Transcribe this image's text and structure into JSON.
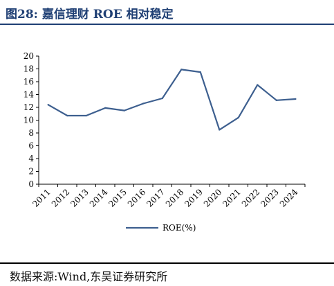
{
  "header": {
    "title": "图28:  嘉信理财 ROE 相对稳定"
  },
  "footer": {
    "source": "数据来源:Wind,东吴证券研究所"
  },
  "colors": {
    "line": "#3d5f8f",
    "title": "#1f3f74"
  },
  "chart_data": {
    "type": "line",
    "title": "",
    "xlabel": "",
    "ylabel": "",
    "ylim": [
      0,
      20
    ],
    "yticks": [
      0,
      2,
      4,
      6,
      8,
      10,
      12,
      14,
      16,
      18,
      20
    ],
    "x": [
      "2011",
      "2012",
      "2013",
      "2014",
      "2015",
      "2016",
      "2017",
      "2018",
      "2019",
      "2020",
      "2021",
      "2022",
      "2023",
      "2024"
    ],
    "series": [
      {
        "name": "ROE(%)",
        "values": [
          12.4,
          10.7,
          10.7,
          11.9,
          11.5,
          12.6,
          13.4,
          17.9,
          17.5,
          8.5,
          10.4,
          15.5,
          13.1,
          13.3
        ]
      }
    ],
    "grid": false,
    "legend": "bottom"
  }
}
